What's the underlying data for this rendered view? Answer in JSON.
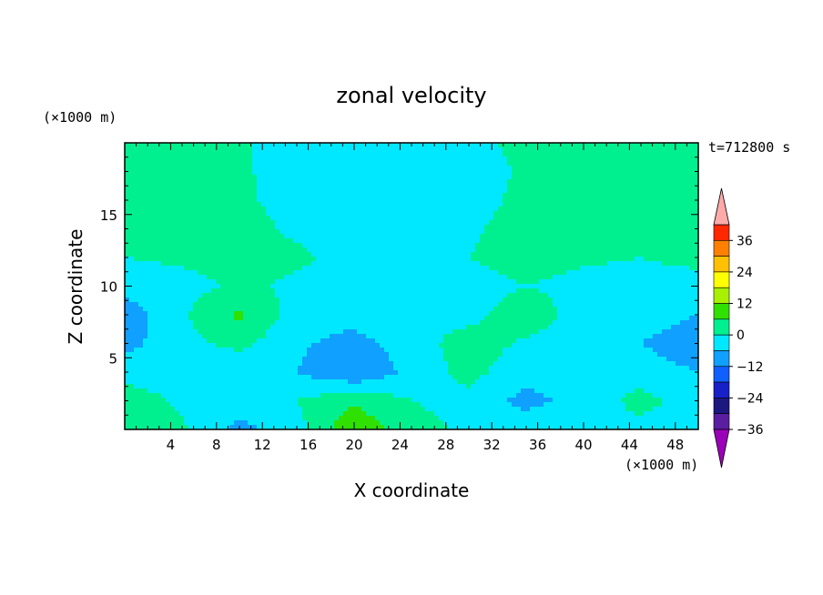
{
  "chart_data": {
    "type": "heatmap",
    "title": "zonal velocity",
    "xlabel": "X coordinate",
    "ylabel": "Z coordinate",
    "x_unit": "(×1000 m)",
    "y_unit": "(×1000 m)",
    "time_label": "t=712800 s",
    "xlim": [
      0,
      50
    ],
    "ylim": [
      0,
      20
    ],
    "x_ticks": [
      4,
      8,
      12,
      16,
      20,
      24,
      28,
      32,
      36,
      40,
      44,
      48
    ],
    "y_ticks": [
      5,
      10,
      15
    ],
    "colorbar": {
      "labels": [
        "36",
        "24",
        "12",
        "0",
        "−12",
        "−24",
        "−36"
      ],
      "levels": [
        -42,
        -36,
        -30,
        -24,
        -18,
        -12,
        -6,
        0,
        6,
        12,
        18,
        24,
        30,
        36,
        42
      ],
      "colors": [
        "#9a00b8",
        "#5a1ea0",
        "#1c1880",
        "#1820c8",
        "#1060ff",
        "#10a0ff",
        "#00e8ff",
        "#00f090",
        "#30e000",
        "#a8f000",
        "#ffff00",
        "#ffc000",
        "#ff8000",
        "#ff2800",
        "#ffaaaa"
      ]
    },
    "field_grid": {
      "x": [
        0,
        5,
        10,
        15,
        20,
        25,
        30,
        35,
        40,
        45,
        50
      ],
      "z": [
        0,
        2,
        4,
        6,
        8,
        10,
        12,
        14,
        16,
        18,
        20
      ],
      "values": [
        [
          3,
          1,
          -8,
          -2,
          11,
          2,
          -1,
          -2,
          0,
          -2,
          -3
        ],
        [
          3,
          -1,
          -3,
          0,
          5,
          0,
          -2,
          -8,
          -4,
          2,
          -3
        ],
        [
          -2,
          -3,
          -6,
          -6,
          -12,
          -4,
          2,
          -4,
          -1,
          -3,
          -6
        ],
        [
          -8,
          -2,
          2,
          -5,
          -8,
          -3,
          3,
          -1,
          -4,
          -6,
          -10
        ],
        [
          -10,
          -1,
          7,
          -3,
          -4,
          -1,
          -2,
          4,
          -3,
          -3,
          -6
        ],
        [
          -3,
          -2,
          1,
          -1,
          -2,
          -2,
          -3,
          0,
          -2,
          -3,
          -3
        ],
        [
          0,
          1,
          2,
          1,
          -2,
          -3,
          0,
          3,
          1,
          0,
          2
        ],
        [
          1,
          1,
          2,
          -1,
          -2,
          -3,
          -1,
          3,
          2,
          3,
          4
        ],
        [
          3,
          2,
          1,
          -2,
          -3,
          -2,
          -3,
          2,
          2,
          4,
          4
        ],
        [
          4,
          2,
          1,
          -3,
          -3,
          -3,
          -3,
          1,
          3,
          3,
          4
        ],
        [
          4,
          2,
          1,
          -3,
          -3,
          -3,
          -2,
          2,
          2,
          3,
          4
        ]
      ]
    }
  }
}
